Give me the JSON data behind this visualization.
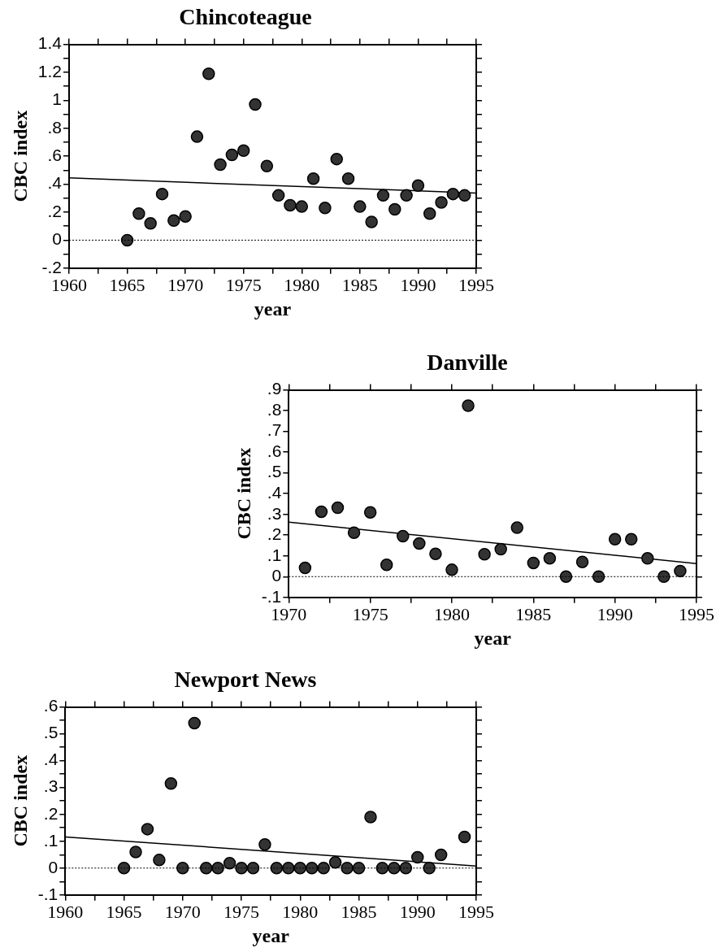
{
  "chart_data": [
    {
      "type": "scatter",
      "title": "Chincoteague",
      "xlabel": "year",
      "ylabel": "CBC index",
      "xlim": [
        1960,
        1995
      ],
      "ylim": [
        -0.2,
        1.4
      ],
      "xticks": [
        1960,
        {
          "value": 1962.5,
          "label": null
        },
        1965,
        {
          "value": 1967.5,
          "label": null
        },
        1970,
        {
          "value": 1972.5,
          "label": null
        },
        1975,
        {
          "value": 1977.5,
          "label": null
        },
        1980,
        {
          "value": 1982.5,
          "label": null
        },
        1985,
        {
          "value": 1987.5,
          "label": null
        },
        1990,
        {
          "value": 1992.5,
          "label": null
        },
        1995
      ],
      "yticks": [
        {
          "value": -0.2,
          "label": "-.2"
        },
        {
          "value": -0.1,
          "label": null
        },
        0,
        {
          "value": 0.1,
          "label": null
        },
        {
          "value": 0.2,
          "label": ".2"
        },
        {
          "value": 0.3,
          "label": null
        },
        {
          "value": 0.4,
          "label": ".4"
        },
        {
          "value": 0.5,
          "label": null
        },
        {
          "value": 0.6,
          "label": ".6"
        },
        {
          "value": 0.7,
          "label": null
        },
        {
          "value": 0.8,
          "label": ".8"
        },
        {
          "value": 0.9,
          "label": null
        },
        1,
        {
          "value": 1.1,
          "label": null
        },
        1.2,
        {
          "value": 1.3,
          "label": null
        },
        1.4
      ],
      "ref_lines": [
        {
          "axis": "y",
          "value": 0,
          "color": "#000000",
          "line_style": "dotted"
        }
      ],
      "series": [
        {
          "type": "scatter",
          "marker": "circle",
          "color": "#333333",
          "x": [
            1965,
            1966,
            1967,
            1968,
            1969,
            1970,
            1971,
            1972,
            1973,
            1974,
            1975,
            1976,
            1977,
            1978,
            1979,
            1980,
            1981,
            1982,
            1983,
            1984,
            1985,
            1986,
            1987,
            1988,
            1989,
            1990,
            1991,
            1992,
            1993,
            1994
          ],
          "values": [
            0,
            0.19,
            0.12,
            0.33,
            0.14,
            0.17,
            0.74,
            1.19,
            0.54,
            0.61,
            0.64,
            0.97,
            0.53,
            0.32,
            0.25,
            0.24,
            0.44,
            0.23,
            0.58,
            0.44,
            0.24,
            0.13,
            0.32,
            0.22,
            0.32,
            0.39,
            0.19,
            0.27,
            0.33,
            0.32
          ]
        },
        {
          "type": "line",
          "marker": "none",
          "color": "#000000",
          "x": [
            1960,
            1995
          ],
          "values": [
            0.445,
            0.337
          ]
        }
      ]
    },
    {
      "type": "scatter",
      "title": "Danville",
      "xlabel": "year",
      "ylabel": "CBC index",
      "xlim": [
        1970,
        1995
      ],
      "ylim": [
        -0.1,
        0.9
      ],
      "xticks": [
        1970,
        {
          "value": 1972.5,
          "label": null
        },
        1975,
        {
          "value": 1977.5,
          "label": null
        },
        1980,
        {
          "value": 1982.5,
          "label": null
        },
        1985,
        {
          "value": 1987.5,
          "label": null
        },
        1990,
        {
          "value": 1992.5,
          "label": null
        },
        1995
      ],
      "yticks": [
        {
          "value": -0.1,
          "label": "-.1"
        },
        0,
        {
          "value": 0.1,
          "label": ".1"
        },
        {
          "value": 0.2,
          "label": ".2"
        },
        {
          "value": 0.3,
          "label": ".3"
        },
        {
          "value": 0.4,
          "label": ".4"
        },
        {
          "value": 0.5,
          "label": ".5"
        },
        {
          "value": 0.6,
          "label": ".6"
        },
        {
          "value": 0.7,
          "label": ".7"
        },
        {
          "value": 0.8,
          "label": ".8"
        },
        {
          "value": 0.9,
          "label": ".9"
        }
      ],
      "ref_lines": [
        {
          "axis": "y",
          "value": 0,
          "color": "#000000",
          "line_style": "dotted"
        }
      ],
      "series": [
        {
          "type": "scatter",
          "marker": "circle",
          "color": "#333333",
          "x": [
            1971,
            1972,
            1973,
            1974,
            1975,
            1976,
            1977,
            1978,
            1979,
            1980,
            1981,
            1982,
            1983,
            1984,
            1985,
            1986,
            1987,
            1988,
            1989,
            1990,
            1991,
            1992,
            1993,
            1994
          ],
          "values": [
            0.042,
            0.313,
            0.332,
            0.212,
            0.31,
            0.057,
            0.195,
            0.16,
            0.11,
            0.033,
            0.824,
            0.108,
            0.132,
            0.236,
            0.066,
            0.088,
            0,
            0.071,
            0,
            0.18,
            0.18,
            0.088,
            0,
            0.027
          ]
        },
        {
          "type": "line",
          "marker": "none",
          "color": "#000000",
          "x": [
            1970,
            1995
          ],
          "values": [
            0.263,
            0.063
          ]
        }
      ]
    },
    {
      "type": "scatter",
      "title": "Newport News",
      "xlabel": "year",
      "ylabel": "CBC index",
      "xlim": [
        1960,
        1995
      ],
      "ylim": [
        -0.1,
        0.6
      ],
      "xticks": [
        1960,
        {
          "value": 1962.5,
          "label": null
        },
        1965,
        {
          "value": 1967.5,
          "label": null
        },
        1970,
        {
          "value": 1972.5,
          "label": null
        },
        1975,
        {
          "value": 1977.5,
          "label": null
        },
        1980,
        {
          "value": 1982.5,
          "label": null
        },
        1985,
        {
          "value": 1987.5,
          "label": null
        },
        1990,
        {
          "value": 1992.5,
          "label": null
        },
        1995
      ],
      "yticks": [
        {
          "value": -0.1,
          "label": "-.1"
        },
        {
          "value": -0.05,
          "label": null
        },
        0,
        {
          "value": 0.05,
          "label": null
        },
        {
          "value": 0.1,
          "label": ".1"
        },
        {
          "value": 0.15,
          "label": null
        },
        {
          "value": 0.2,
          "label": ".2"
        },
        {
          "value": 0.25,
          "label": null
        },
        {
          "value": 0.3,
          "label": ".3"
        },
        {
          "value": 0.35,
          "label": null
        },
        {
          "value": 0.4,
          "label": ".4"
        },
        {
          "value": 0.45,
          "label": null
        },
        {
          "value": 0.5,
          "label": ".5"
        },
        {
          "value": 0.55,
          "label": null
        },
        {
          "value": 0.6,
          "label": ".6"
        }
      ],
      "ref_lines": [
        {
          "axis": "y",
          "value": 0,
          "color": "#000000",
          "line_style": "dotted"
        }
      ],
      "series": [
        {
          "type": "scatter",
          "marker": "circle",
          "color": "#333333",
          "x": [
            1965,
            1966,
            1967,
            1968,
            1969,
            1970,
            1971,
            1972,
            1973,
            1974,
            1975,
            1976,
            1977,
            1978,
            1979,
            1980,
            1981,
            1982,
            1983,
            1984,
            1985,
            1986,
            1987,
            1988,
            1989,
            1990,
            1991,
            1992,
            1994
          ],
          "values": [
            0,
            0.06,
            0.145,
            0.03,
            0.315,
            0,
            0.54,
            0,
            0,
            0.018,
            0,
            0,
            0.088,
            0,
            0,
            0,
            0,
            0,
            0.021,
            0,
            0,
            0.19,
            0,
            0,
            0,
            0.04,
            0,
            0.049,
            0.116
          ]
        },
        {
          "type": "line",
          "marker": "none",
          "color": "#000000",
          "x": [
            1960,
            1995
          ],
          "values": [
            0.116,
            0.008
          ]
        }
      ]
    }
  ]
}
